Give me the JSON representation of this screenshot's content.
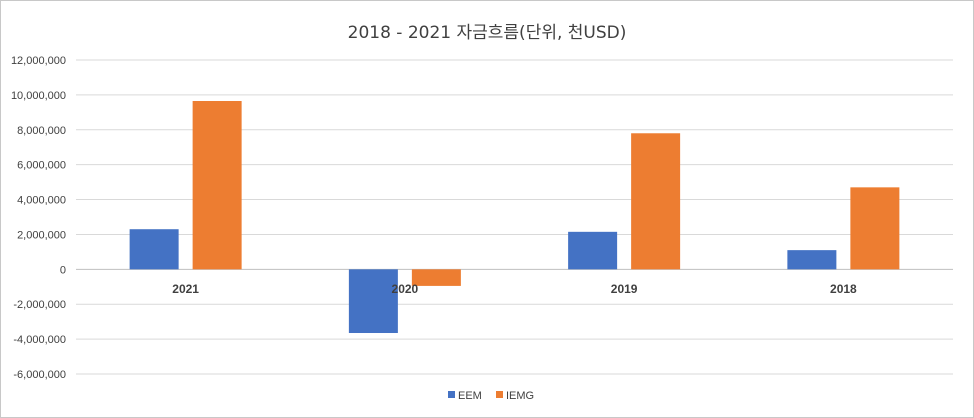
{
  "chart_data": {
    "type": "bar",
    "title": "2018 - 2021 자금흐름(단위, 천USD)",
    "categories": [
      "2021",
      "2020",
      "2019",
      "2018"
    ],
    "series": [
      {
        "name": "EEM",
        "color": "#4472c4",
        "values": [
          2300000,
          -3650000,
          2150000,
          1100000
        ]
      },
      {
        "name": "IEMG",
        "color": "#ed7d31",
        "values": [
          9650000,
          -950000,
          7800000,
          4700000
        ]
      }
    ],
    "ylim": [
      -6000000,
      12000000
    ],
    "yticks": [
      12000000,
      10000000,
      8000000,
      6000000,
      4000000,
      2000000,
      0,
      -2000000,
      -4000000,
      -6000000
    ],
    "ytick_labels": [
      "12,000,000",
      "10,000,000",
      "8,000,000",
      "6,000,000",
      "4,000,000",
      "2,000,000",
      "0",
      "-2,000,000",
      "-4,000,000",
      "-6,000,000"
    ],
    "xlabel": "",
    "ylabel": "",
    "grid": true,
    "legend_position": "bottom"
  }
}
